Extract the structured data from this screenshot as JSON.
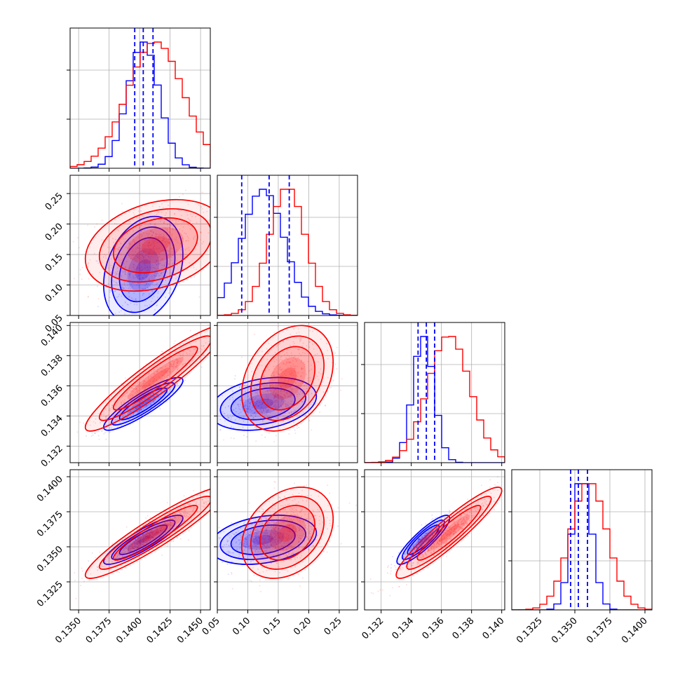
{
  "chart_data": {
    "type": "corner",
    "parameters": [
      "",
      "",
      "",
      ""
    ],
    "series": [
      {
        "color": "#0000ff",
        "means": [
          0.1403,
          0.125,
          0.1348,
          0.1355
        ],
        "sigmas": [
          0.0013,
          0.035,
          0.0007,
          0.0007
        ]
      },
      {
        "color": "#ff0000",
        "means": [
          0.1413,
          0.165,
          0.1365,
          0.136
        ],
        "sigmas": [
          0.0023,
          0.03,
          0.0014,
          0.0013
        ]
      }
    ],
    "quantile_lines": {
      "color": "#0000ff",
      "values": [
        [
          0.1396,
          0.1403,
          0.1411
        ],
        [
          0.09,
          0.135,
          0.168
        ],
        [
          0.13445,
          0.135,
          0.13555
        ],
        [
          0.1347,
          0.13525,
          0.1359
        ]
      ]
    },
    "axis_ranges": [
      [
        0.1343,
        0.1458
      ],
      [
        0.05,
        0.28
      ],
      [
        0.1309,
        0.1402
      ],
      [
        0.1305,
        0.1405
      ]
    ],
    "ticks": [
      [
        "0.1350",
        "0.1375",
        "0.1400",
        "0.1425",
        "0.1450"
      ],
      [
        "0.05",
        "0.10",
        "0.15",
        "0.20",
        "0.25"
      ],
      [
        "0.132",
        "0.134",
        "0.136",
        "0.138",
        "0.140"
      ],
      [
        "0.1325",
        "0.1350",
        "0.1375",
        "0.1400"
      ]
    ],
    "grid": true,
    "panels": [
      {
        "row": 0,
        "col": 0,
        "kind": "histogram"
      },
      {
        "row": 1,
        "col": 0,
        "kind": "contour"
      },
      {
        "row": 1,
        "col": 1,
        "kind": "histogram"
      },
      {
        "row": 2,
        "col": 0,
        "kind": "contour"
      },
      {
        "row": 2,
        "col": 1,
        "kind": "contour"
      },
      {
        "row": 2,
        "col": 2,
        "kind": "histogram"
      },
      {
        "row": 3,
        "col": 0,
        "kind": "contour"
      },
      {
        "row": 3,
        "col": 1,
        "kind": "contour"
      },
      {
        "row": 3,
        "col": 2,
        "kind": "contour"
      },
      {
        "row": 3,
        "col": 3,
        "kind": "histogram"
      }
    ]
  }
}
